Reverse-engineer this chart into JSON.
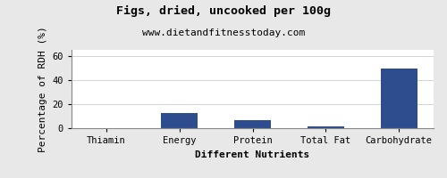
{
  "title": "Figs, dried, uncooked per 100g",
  "subtitle": "www.dietandfitnesstoday.com",
  "xlabel": "Different Nutrients",
  "ylabel": "Percentage of RDH (%)",
  "categories": [
    "Thiamin",
    "Energy",
    "Protein",
    "Total Fat",
    "Carbohydrate"
  ],
  "values": [
    0.3,
    12.5,
    6.5,
    1.2,
    49.5
  ],
  "bar_color": "#2e4d8e",
  "ylim": [
    0,
    65
  ],
  "yticks": [
    0,
    20,
    40,
    60
  ],
  "background_color": "#e8e8e8",
  "plot_bg_color": "#ffffff",
  "title_fontsize": 9.5,
  "subtitle_fontsize": 8,
  "axis_label_fontsize": 8,
  "tick_fontsize": 7.5
}
